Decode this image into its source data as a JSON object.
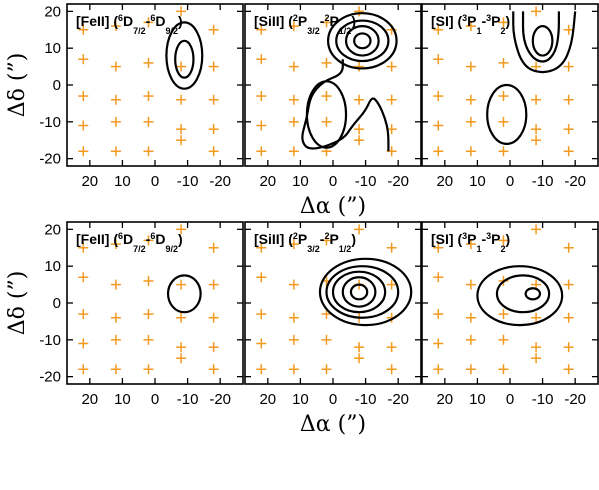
{
  "chart_data": {
    "type": "contour",
    "colors": {
      "contour": "#000000",
      "marker": "#f39a1e",
      "frame": "#000000"
    },
    "axes": {
      "x_label": "Δα (”)",
      "y_label": "Δδ (”)",
      "xlim": [
        27,
        -27
      ],
      "ylim": [
        -22,
        22
      ],
      "xticks": [
        20,
        10,
        0,
        -10,
        -20
      ],
      "xtick_labels": [
        "20",
        "10",
        "0",
        "-10",
        "-20"
      ],
      "yticks": [
        20,
        10,
        0,
        -10,
        -20
      ],
      "ytick_labels": [
        "20",
        "10",
        "0",
        "-10",
        "-20"
      ]
    },
    "pointings": [
      [
        22,
        15
      ],
      [
        12,
        16
      ],
      [
        2,
        17
      ],
      [
        -8,
        20
      ],
      [
        -18,
        15
      ],
      [
        22,
        7
      ],
      [
        12,
        5
      ],
      [
        2,
        6
      ],
      [
        -8,
        5
      ],
      [
        -18,
        5
      ],
      [
        22,
        -3
      ],
      [
        12,
        -4
      ],
      [
        2,
        -3
      ],
      [
        -8,
        -4
      ],
      [
        -18,
        -4
      ],
      [
        22,
        -11
      ],
      [
        12,
        -10
      ],
      [
        2,
        -10
      ],
      [
        -8,
        -12
      ],
      [
        -18,
        -12
      ],
      [
        22,
        -18
      ],
      [
        12,
        -18
      ],
      [
        2,
        -18
      ],
      [
        -8,
        -15
      ],
      [
        -18,
        -18
      ]
    ],
    "panels": [
      {
        "row": 0,
        "col": 0,
        "label": [
          [
            "[FeII] (",
            "normal"
          ],
          [
            "6",
            "sup"
          ],
          [
            "D",
            "normal"
          ],
          [
            "7/2",
            "sub"
          ],
          [
            "-",
            "normal"
          ],
          [
            "6",
            "sup"
          ],
          [
            "D",
            "normal"
          ],
          [
            "9/2",
            "sub"
          ],
          [
            ")",
            "normal"
          ]
        ],
        "contours": [
          {
            "cx": -9,
            "cy": 8,
            "rx": 5.5,
            "ry": 9
          },
          {
            "cx": -9,
            "cy": 7,
            "rx": 2.8,
            "ry": 5
          }
        ]
      },
      {
        "row": 0,
        "col": 1,
        "label": [
          [
            "[SiII] (",
            "normal"
          ],
          [
            "2",
            "sup"
          ],
          [
            "P",
            "normal"
          ],
          [
            "3/2",
            "sub"
          ],
          [
            "-",
            "normal"
          ],
          [
            "2",
            "sup"
          ],
          [
            "P",
            "normal"
          ],
          [
            "1/2",
            "sub"
          ],
          [
            ")",
            "normal"
          ]
        ],
        "contours": [
          {
            "cx": -9,
            "cy": 12,
            "rx": 2.5,
            "ry": 2
          },
          {
            "cx": -9,
            "cy": 12,
            "rx": 5,
            "ry": 4
          },
          {
            "cx": -9,
            "cy": 12,
            "rx": 8,
            "ry": 5.5
          },
          {
            "cx": -9,
            "cy": 12,
            "rx": 10.5,
            "ry": 7.5
          },
          {
            "cx": 2,
            "cy": -8,
            "rx": 6,
            "ry": 9
          }
        ],
        "paths": [
          [
            [
              -3,
              7
            ],
            [
              -3,
              3
            ],
            [
              3,
              1
            ],
            [
              7,
              -3
            ],
            [
              8,
              -9
            ],
            [
              10,
              -15
            ],
            [
              7,
              -18
            ],
            [
              -3,
              -15
            ],
            [
              -6,
              -11
            ],
            [
              -10,
              -7
            ],
            [
              -12,
              -3
            ],
            [
              -14,
              -5
            ],
            [
              -16,
              -9
            ],
            [
              -17,
              -13
            ],
            [
              -17,
              -18
            ]
          ]
        ]
      },
      {
        "row": 0,
        "col": 2,
        "label": [
          [
            "[SI] (",
            "normal"
          ],
          [
            "3",
            "sup"
          ],
          [
            "P",
            "normal"
          ],
          [
            "1",
            "sub"
          ],
          [
            "-",
            "normal"
          ],
          [
            "3",
            "sup"
          ],
          [
            "P",
            "normal"
          ],
          [
            "2",
            "sub"
          ],
          [
            ")",
            "normal"
          ]
        ],
        "contours": [
          {
            "cx": -10,
            "cy": 12,
            "rx": 3,
            "ry": 4
          },
          {
            "cx": 1,
            "cy": -8,
            "rx": 6,
            "ry": 8
          }
        ],
        "paths": [
          [
            [
              -4,
              20
            ],
            [
              -4,
              12
            ],
            [
              -7,
              7
            ],
            [
              -11,
              6
            ],
            [
              -14,
              9
            ],
            [
              -15,
              14
            ],
            [
              -15,
              20
            ]
          ],
          [
            [
              -1,
              20
            ],
            [
              -1,
              13
            ],
            [
              -4,
              5
            ],
            [
              -10,
              3
            ],
            [
              -16,
              5
            ],
            [
              -19,
              11
            ],
            [
              -20,
              20
            ]
          ]
        ]
      },
      {
        "row": 1,
        "col": 0,
        "label": [
          [
            "[FeII] (",
            "normal"
          ],
          [
            "6",
            "sup"
          ],
          [
            "D",
            "normal"
          ],
          [
            "7/2",
            "sub"
          ],
          [
            "-",
            "normal"
          ],
          [
            "6",
            "sup"
          ],
          [
            "D",
            "normal"
          ],
          [
            "9/2",
            "sub"
          ],
          [
            ")",
            "normal"
          ]
        ],
        "contours": [
          {
            "cx": -9,
            "cy": 2.5,
            "rx": 5,
            "ry": 5
          }
        ]
      },
      {
        "row": 1,
        "col": 1,
        "label": [
          [
            "[SiII] (",
            "normal"
          ],
          [
            "2",
            "sup"
          ],
          [
            "P",
            "normal"
          ],
          [
            "3/2",
            "sub"
          ],
          [
            "-",
            "normal"
          ],
          [
            "2",
            "sup"
          ],
          [
            "P",
            "normal"
          ],
          [
            "1/2",
            "sub"
          ],
          [
            ")",
            "normal"
          ]
        ],
        "contours": [
          {
            "cx": -8,
            "cy": 3,
            "rx": 2.5,
            "ry": 2
          },
          {
            "cx": -8,
            "cy": 3,
            "rx": 5,
            "ry": 4
          },
          {
            "cx": -8,
            "cy": 3,
            "rx": 8,
            "ry": 5.5
          },
          {
            "cx": -9,
            "cy": 3,
            "rx": 11,
            "ry": 7
          },
          {
            "cx": -10,
            "cy": 3,
            "rx": 14,
            "ry": 9
          }
        ]
      },
      {
        "row": 1,
        "col": 2,
        "label": [
          [
            "[SI] (",
            "normal"
          ],
          [
            "3",
            "sup"
          ],
          [
            "P",
            "normal"
          ],
          [
            "1",
            "sub"
          ],
          [
            "-",
            "normal"
          ],
          [
            "3",
            "sup"
          ],
          [
            "P",
            "normal"
          ],
          [
            "2",
            "sub"
          ],
          [
            ")",
            "normal"
          ]
        ],
        "contours": [
          {
            "cx": -7,
            "cy": 2.5,
            "rx": 2.2,
            "ry": 1.5
          },
          {
            "cx": -4,
            "cy": 2.5,
            "rx": 8,
            "ry": 5
          },
          {
            "cx": -3,
            "cy": 2,
            "rx": 13,
            "ry": 8
          }
        ]
      }
    ]
  }
}
